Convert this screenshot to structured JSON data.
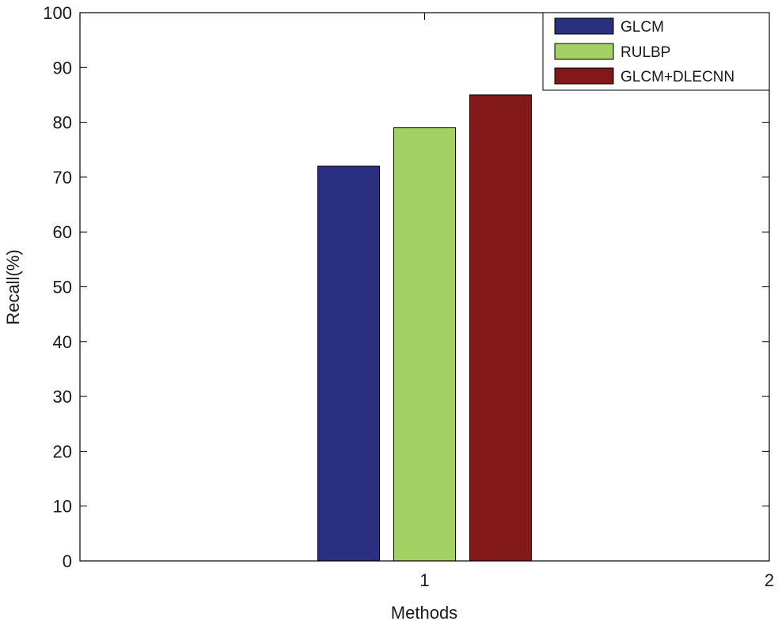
{
  "chart_data": {
    "type": "bar",
    "title": "",
    "xlabel": "Methods",
    "ylabel": "Recall(%)",
    "categories": [
      "1"
    ],
    "xlim": [
      0,
      2
    ],
    "xticks": [
      "1",
      "2"
    ],
    "ylim": [
      0,
      100
    ],
    "yticks": [
      "0",
      "10",
      "20",
      "30",
      "40",
      "50",
      "60",
      "70",
      "80",
      "90",
      "100"
    ],
    "grid": false,
    "legend_position": "top-right",
    "series": [
      {
        "name": "GLCM",
        "values": [
          72
        ],
        "color": "#2b2f80"
      },
      {
        "name": "RULBP",
        "values": [
          79
        ],
        "color": "#a3d165"
      },
      {
        "name": "GLCM+DLECNN",
        "values": [
          85
        ],
        "color": "#821818"
      }
    ]
  }
}
